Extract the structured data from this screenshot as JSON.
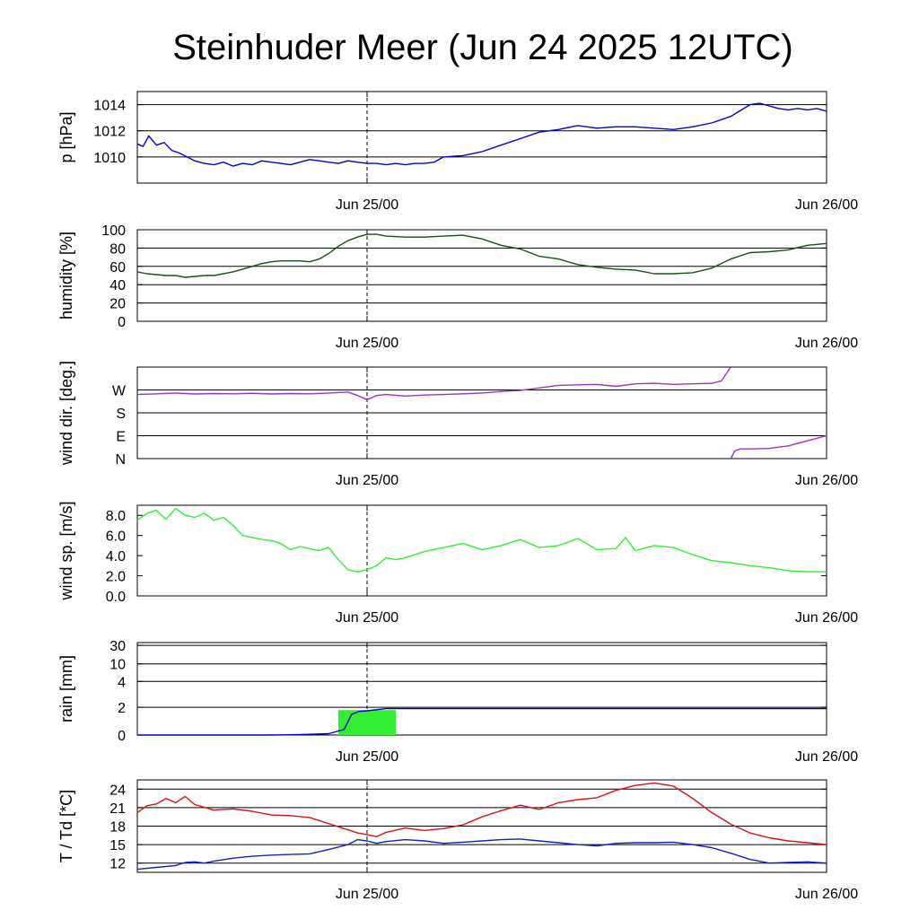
{
  "title": "Steinhuder Meer (Jun 24 2025 12UTC)",
  "x_ticks": [
    {
      "label": "Jun 25/00",
      "hours": 12
    },
    {
      "label": "Jun 26/00",
      "hours": 36
    }
  ],
  "chart_data": [
    {
      "type": "line",
      "ylabel": "p [hPa]",
      "ylim": [
        1008,
        1015
      ],
      "yticks": [
        1010,
        1012,
        1014
      ],
      "ytick_labels": [
        "1010",
        "1012",
        "1014"
      ],
      "gridlines": [
        1010,
        1012,
        1014,
        1015
      ],
      "series": [
        {
          "color": "#0000dd",
          "x": [
            0,
            0.3,
            0.6,
            1,
            1.4,
            1.8,
            2.2,
            2.6,
            3,
            3.5,
            4,
            4.5,
            5,
            5.5,
            6,
            6.5,
            7,
            7.5,
            8,
            8.5,
            9,
            9.5,
            10,
            10.5,
            11,
            11.5,
            12,
            12.5,
            13,
            13.5,
            14,
            14.5,
            15,
            15.5,
            16,
            17,
            18,
            19,
            20,
            21,
            22,
            23,
            24,
            25,
            26,
            27,
            28,
            29,
            30,
            31,
            32,
            32.5,
            33,
            33.5,
            34,
            34.5,
            35,
            35.5,
            36
          ],
          "values": [
            1011,
            1010.8,
            1011.6,
            1010.9,
            1011.1,
            1010.5,
            1010.3,
            1010.0,
            1009.7,
            1009.5,
            1009.4,
            1009.6,
            1009.3,
            1009.5,
            1009.4,
            1009.7,
            1009.6,
            1009.5,
            1009.4,
            1009.6,
            1009.8,
            1009.7,
            1009.6,
            1009.5,
            1009.7,
            1009.6,
            1009.5,
            1009.5,
            1009.4,
            1009.5,
            1009.4,
            1009.5,
            1009.5,
            1009.6,
            1010.0,
            1010.1,
            1010.4,
            1010.9,
            1011.4,
            1011.9,
            1012.1,
            1012.4,
            1012.2,
            1012.3,
            1012.3,
            1012.2,
            1012.1,
            1012.3,
            1012.6,
            1013.1,
            1014.0,
            1014.1,
            1013.9,
            1013.7,
            1013.6,
            1013.7,
            1013.6,
            1013.7,
            1013.5
          ]
        }
      ]
    },
    {
      "type": "line",
      "ylabel": "humidity [%]",
      "ylim": [
        0,
        100
      ],
      "yticks": [
        0,
        20,
        40,
        60,
        80,
        100
      ],
      "ytick_labels": [
        "0",
        "20",
        "40",
        "60",
        "80",
        "100"
      ],
      "gridlines": [
        20,
        40,
        60,
        80
      ],
      "series": [
        {
          "color": "#115511",
          "x": [
            0,
            0.5,
            1,
            1.5,
            2,
            2.5,
            3,
            3.5,
            4,
            4.5,
            5,
            5.5,
            6,
            6.5,
            7,
            7.5,
            8,
            8.5,
            9,
            9.5,
            10,
            10.5,
            11,
            11.5,
            12,
            12.5,
            13,
            14,
            15,
            16,
            17,
            18,
            19,
            20,
            21,
            22,
            23,
            24,
            25,
            26,
            27,
            28,
            29,
            30,
            31,
            32,
            33,
            34,
            35,
            36
          ],
          "values": [
            54,
            52,
            51,
            50,
            50,
            48,
            49,
            50,
            50,
            52,
            54,
            57,
            60,
            63,
            65,
            66,
            66,
            66,
            65,
            68,
            74,
            82,
            88,
            92,
            95,
            95,
            93,
            92,
            92,
            93,
            94,
            90,
            83,
            79,
            71,
            68,
            62,
            59,
            57,
            56,
            52,
            52,
            53,
            58,
            68,
            75,
            76,
            78,
            83,
            85
          ]
        }
      ]
    },
    {
      "type": "line",
      "ylabel": "wind dir. [deg.]",
      "ylim": [
        0,
        360
      ],
      "yticks": [
        0,
        90,
        180,
        270
      ],
      "ytick_labels": [
        "N",
        "E",
        "S",
        "W"
      ],
      "gridlines": [
        90,
        180,
        270,
        360
      ],
      "series": [
        {
          "color": "#9933cc",
          "x": [
            0,
            1,
            2,
            3,
            4,
            5,
            6,
            7,
            8,
            9,
            10,
            11,
            11.5,
            12,
            12.5,
            13,
            14,
            15,
            16,
            17,
            18,
            19,
            20,
            21,
            22,
            23,
            24,
            25,
            26,
            27,
            28,
            29,
            30,
            30.5,
            31
          ],
          "values": [
            252,
            255,
            258,
            254,
            256,
            255,
            257,
            254,
            256,
            255,
            258,
            262,
            248,
            232,
            248,
            252,
            246,
            250,
            252,
            255,
            258,
            264,
            268,
            278,
            288,
            290,
            292,
            284,
            294,
            296,
            292,
            294,
            296,
            305,
            360
          ]
        },
        {
          "color": "#9933cc",
          "x": [
            31,
            31.2,
            31.5,
            32,
            33,
            34,
            35,
            36
          ],
          "values": [
            0,
            30,
            38,
            38,
            40,
            50,
            70,
            90
          ]
        }
      ]
    },
    {
      "type": "line",
      "ylabel": "wind sp. [m/s]",
      "ylim": [
        0,
        9
      ],
      "yticks": [
        0,
        2,
        4,
        6,
        8
      ],
      "ytick_labels": [
        "0.0",
        "2.0",
        "4.0",
        "6.0",
        "8.0"
      ],
      "gridlines": [],
      "series": [
        {
          "color": "#33ee33",
          "x": [
            0,
            0.5,
            1,
            1.5,
            2,
            2.5,
            3,
            3.5,
            4,
            4.5,
            5,
            5.5,
            6,
            6.5,
            7,
            7.5,
            8,
            8.5,
            9,
            9.5,
            10,
            10.5,
            11,
            11.5,
            12,
            12.5,
            13,
            13.5,
            14,
            15,
            16,
            17,
            18,
            19,
            20,
            21,
            22,
            23,
            24,
            25,
            25.5,
            26,
            27,
            28,
            29,
            30,
            31,
            32,
            33,
            34,
            35,
            36
          ],
          "values": [
            7.5,
            8.2,
            8.5,
            7.6,
            8.7,
            8.0,
            7.8,
            8.2,
            7.5,
            7.8,
            7.0,
            6.0,
            5.8,
            5.6,
            5.5,
            5.2,
            4.6,
            4.9,
            4.7,
            4.5,
            4.8,
            3.6,
            2.6,
            2.4,
            2.6,
            3.0,
            3.8,
            3.6,
            3.8,
            4.4,
            4.8,
            5.2,
            4.6,
            5.0,
            5.6,
            4.8,
            5.0,
            5.7,
            4.6,
            4.7,
            5.8,
            4.5,
            5.0,
            4.8,
            4.1,
            3.5,
            3.3,
            3.0,
            2.8,
            2.5,
            2.4,
            2.4
          ]
        }
      ]
    },
    {
      "type": "area",
      "ylabel": "rain [mm]",
      "ylim": [
        0,
        40
      ],
      "yticks": [
        0,
        2,
        4,
        10,
        30
      ],
      "ytick_labels": [
        "0",
        "2",
        "4",
        "10",
        "30"
      ],
      "gridlines": [
        2,
        4,
        10,
        30
      ],
      "y_positions": [
        0,
        0.3,
        0.58,
        0.77,
        0.97
      ],
      "series": [
        {
          "name": "",
          "color": "#33ee33",
          "kind": "bar",
          "x_start": 10.5,
          "x_end": 13.5,
          "value": 1.8
        },
        {
          "name": "",
          "color": "#0000cc",
          "kind": "line",
          "x": [
            0,
            7,
            8,
            9,
            10,
            10.8,
            11.2,
            11.6,
            12,
            13,
            20,
            30,
            36
          ],
          "values": [
            0,
            0,
            0.02,
            0.05,
            0.1,
            0.4,
            1.5,
            1.7,
            1.75,
            1.9,
            1.9,
            1.9,
            1.9
          ]
        }
      ]
    },
    {
      "type": "line",
      "ylabel": "T / Td [*C]",
      "ylim": [
        10.5,
        25.5
      ],
      "yticks": [
        12,
        15,
        18,
        21,
        24
      ],
      "ytick_labels": [
        "12",
        "15",
        "18",
        "21",
        "24"
      ],
      "gridlines": [
        12,
        15,
        18,
        21,
        24
      ],
      "series": [
        {
          "color": "#dd1111",
          "x": [
            0,
            0.5,
            1,
            1.5,
            2,
            2.5,
            3,
            4,
            5,
            6,
            7,
            8,
            9,
            10,
            11,
            11.5,
            12,
            12.5,
            13,
            14,
            15,
            16,
            17,
            18,
            19,
            20,
            21,
            22,
            23,
            24,
            25,
            26,
            27,
            28,
            29,
            30,
            31,
            32,
            33,
            34,
            35,
            36
          ],
          "values": [
            20.2,
            21.3,
            21.6,
            22.5,
            21.8,
            22.8,
            21.5,
            20.6,
            20.8,
            20.4,
            19.8,
            19.7,
            19.4,
            18.4,
            17.4,
            16.9,
            16.6,
            16.3,
            17.0,
            17.7,
            17.3,
            17.6,
            18.2,
            19.5,
            20.5,
            21.4,
            20.7,
            21.8,
            22.3,
            22.6,
            23.8,
            24.6,
            25.0,
            24.5,
            22.5,
            20.2,
            18.3,
            16.9,
            16.1,
            15.6,
            15.3,
            15.0
          ]
        },
        {
          "color": "#1122cc",
          "x": [
            0,
            1,
            2,
            2.5,
            3,
            3.5,
            4,
            5,
            6,
            7,
            8,
            9,
            10,
            11,
            11.5,
            12,
            12.5,
            13,
            14,
            15,
            16,
            17,
            18,
            19,
            20,
            21,
            22,
            23,
            24,
            25,
            26,
            27,
            28,
            29,
            30,
            31,
            32,
            33,
            34,
            35,
            36
          ],
          "values": [
            11.0,
            11.3,
            11.6,
            12.1,
            12.2,
            12.0,
            12.3,
            12.8,
            13.1,
            13.3,
            13.4,
            13.5,
            14.2,
            15.0,
            15.8,
            15.6,
            15.2,
            15.5,
            15.8,
            15.6,
            15.2,
            15.4,
            15.6,
            15.8,
            15.9,
            15.6,
            15.3,
            15.0,
            14.8,
            15.2,
            15.3,
            15.3,
            15.4,
            15.0,
            14.5,
            13.6,
            12.6,
            12.0,
            12.1,
            12.2,
            12.0
          ]
        }
      ]
    }
  ]
}
